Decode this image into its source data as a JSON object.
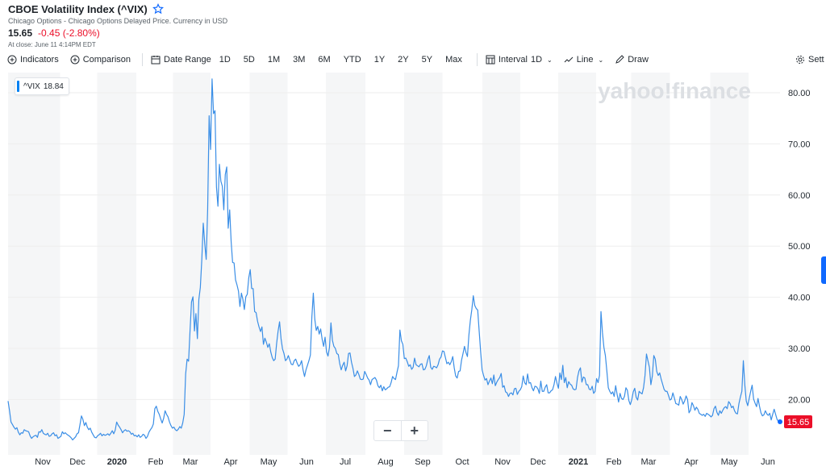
{
  "header": {
    "title": "CBOE Volatility Index (^VIX)",
    "subtitle": "Chicago Options - Chicago Options Delayed Price. Currency in USD",
    "price": "15.65",
    "change": "-0.45 (-2.80%)",
    "close_time": "At close: June 11 4:14PM EDT"
  },
  "toolbar": {
    "indicators": "Indicators",
    "comparison": "Comparison",
    "date_range": "Date Range",
    "ranges": [
      "1D",
      "5D",
      "1M",
      "3M",
      "6M",
      "YTD",
      "1Y",
      "2Y",
      "5Y",
      "Max"
    ],
    "interval_label": "Interval",
    "interval_value": "1D",
    "chart_type": "Line",
    "draw": "Draw",
    "settings": "Sett"
  },
  "tooltip": {
    "symbol": "^VIX",
    "value": "18.84"
  },
  "watermark": "yahoo!finance",
  "colors": {
    "line": "#3a8ee6",
    "negative": "#eb0f29",
    "band": "#f5f6f7",
    "grid": "#eeeeee",
    "price_tag": "#eb0f29"
  },
  "chart_data": {
    "type": "line",
    "series": [
      {
        "values": [
          19.7,
          17.8,
          15.6,
          15.1,
          14.6,
          14.2,
          14.5,
          13.6,
          13.1,
          13.5,
          13.4,
          14.1,
          13.9,
          13.8,
          13.7,
          12.9,
          12.4,
          12.7,
          12.9,
          13.0,
          12.6,
          13.7,
          13.6,
          14.1,
          13.4,
          13.2,
          13.1,
          13.4,
          12.8,
          12.9,
          13.3,
          13.5,
          12.9,
          13.1,
          12.4,
          12.6,
          12.8,
          13.7,
          13.3,
          13.5,
          13.2,
          13.0,
          12.8,
          12.5,
          12.1,
          12.4,
          12.7,
          13.3,
          13.5,
          15.1,
          16.8,
          16.1,
          14.9,
          15.5,
          14.6,
          14.1,
          14.4,
          13.6,
          13.1,
          12.6,
          12.5,
          12.9,
          13.1,
          13.4,
          12.9,
          13.2,
          13.0,
          13.1,
          13.3,
          13.0,
          13.4,
          13.9,
          13.3,
          14.0,
          15.6,
          15.0,
          14.6,
          14.1,
          13.5,
          13.9,
          14.1,
          13.8,
          13.9,
          13.7,
          13.2,
          13.4,
          12.9,
          13.0,
          12.7,
          13.1,
          12.6,
          12.8,
          13.2,
          13.0,
          12.4,
          12.8,
          13.6,
          14.1,
          14.5,
          15.2,
          18.2,
          18.7,
          17.7,
          17.1,
          16.2,
          15.4,
          16.3,
          17.8,
          17.1,
          16.6,
          15.6,
          14.9,
          14.4,
          14.6,
          14.1,
          13.9,
          14.2,
          14.7,
          14.4,
          15.4,
          17.1,
          25.0,
          27.9,
          27.5,
          33.5,
          39.1,
          40.1,
          33.4,
          36.8,
          31.9,
          39.6,
          41.9,
          47.3,
          54.5,
          50.5,
          47.4,
          57.2,
          75.5,
          68.9,
          82.7,
          75.9,
          76.5,
          61.6,
          57.8,
          66.0,
          62.7,
          61.7,
          57.1,
          64.0,
          65.5,
          53.5,
          57.1,
          50.9,
          46.8,
          46.7,
          43.4,
          42.4,
          41.2,
          38.2,
          40.8,
          39.6,
          37.6,
          40.1,
          40.6,
          43.8,
          45.4,
          41.7,
          41.7,
          37.2,
          37.0,
          35.3,
          34.2,
          33.3,
          34.2,
          30.8,
          32.0,
          31.2,
          30.2,
          30.9,
          29.3,
          28.2,
          27.6,
          27.9,
          31.0,
          33.4,
          35.2,
          31.9,
          29.9,
          29.0,
          27.6,
          27.9,
          28.6,
          27.7,
          26.9,
          26.8,
          27.6,
          27.9,
          27.1,
          26.5,
          26.8,
          27.6,
          25.8,
          24.5,
          25.8,
          26.7,
          27.6,
          28.7,
          36.1,
          40.8,
          35.7,
          33.5,
          34.3,
          32.8,
          33.8,
          31.8,
          30.4,
          32.2,
          29.3,
          28.5,
          30.2,
          35.0,
          31.6,
          30.4,
          30.0,
          29.0,
          28.8,
          27.0,
          25.8,
          26.7,
          27.3,
          25.6,
          26.6,
          29.0,
          29.1,
          27.3,
          26.1,
          24.5,
          24.8,
          25.6,
          24.9,
          24.0,
          23.9,
          24.0,
          25.5,
          24.9,
          24.2,
          23.8,
          22.9,
          23.9,
          24.1,
          24.3,
          23.8,
          22.7,
          22.3,
          22.8,
          21.7,
          22.5,
          21.9,
          22.1,
          22.4,
          22.5,
          23.3,
          24.5,
          24.1,
          23.9,
          25.3,
          26.6,
          33.6,
          31.5,
          30.8,
          28.0,
          28.1,
          27.4,
          26.5,
          26.8,
          25.9,
          26.3,
          28.1,
          26.8,
          26.6,
          26.4,
          26.9,
          27.0,
          25.8,
          25.9,
          26.6,
          27.8,
          28.6,
          26.3,
          25.9,
          26.5,
          26.4,
          26.2,
          26.8,
          27.9,
          28.3,
          29.5,
          29.4,
          28.2,
          27.0,
          27.3,
          26.8,
          27.4,
          28.4,
          26.2,
          24.6,
          24.2,
          25.5,
          25.6,
          27.7,
          29.0,
          30.4,
          29.2,
          28.4,
          32.6,
          35.5,
          37.6,
          40.3,
          38.4,
          37.8,
          37.5,
          33.4,
          29.4,
          25.8,
          24.7,
          23.8,
          24.1,
          22.9,
          23.6,
          24.2,
          23.1,
          24.8,
          22.7,
          23.4,
          23.9,
          24.3,
          25.1,
          22.4,
          22.7,
          21.5,
          21.3,
          20.6,
          21.2,
          21.3,
          20.9,
          22.1,
          22.2,
          21.0,
          21.6,
          21.9,
          22.5,
          24.6,
          23.3,
          22.9,
          25.0,
          23.2,
          23.3,
          22.3,
          21.7,
          22.6,
          22.5,
          22.1,
          21.2,
          23.6,
          21.6,
          21.6,
          22.4,
          22.9,
          21.3,
          21.3,
          21.7,
          21.9,
          22.9,
          24.5,
          23.2,
          22.2,
          25.2,
          23.9,
          26.7,
          23.3,
          24.3,
          22.3,
          23.5,
          23.0,
          22.8,
          22.1,
          21.9,
          22.0,
          24.3,
          25.6,
          26.2,
          23.4,
          24.4,
          24.2,
          22.9,
          22.9,
          22.0,
          21.9,
          22.6,
          21.2,
          21.6,
          24.1,
          23.3,
          24.7,
          37.2,
          33.1,
          30.2,
          28.6,
          25.6,
          22.3,
          21.6,
          21.1,
          21.5,
          20.6,
          22.7,
          21.0,
          19.5,
          21.2,
          20.2,
          20.0,
          20.6,
          22.3,
          21.8,
          19.8,
          19.0,
          20.0,
          21.5,
          22.2,
          20.4,
          19.9,
          21.6,
          21.3,
          21.1,
          22.3,
          24.7,
          28.9,
          27.6,
          26.3,
          22.9,
          24.6,
          28.6,
          27.9,
          25.5,
          24.7,
          25.2,
          24.0,
          23.0,
          22.0,
          21.6,
          21.6,
          20.8,
          19.9,
          20.1,
          21.3,
          20.3,
          19.2,
          19.1,
          18.9,
          20.6,
          20.0,
          19.1,
          19.7,
          20.7,
          20.0,
          17.4,
          17.9,
          19.4,
          18.8,
          17.9,
          18.5,
          18.1,
          17.3,
          17.1,
          16.9,
          17.1,
          16.7,
          17.3,
          17.1,
          16.9,
          16.6,
          16.9,
          18.2,
          18.7,
          17.5,
          16.9,
          17.8,
          17.3,
          17.9,
          18.4,
          18.6,
          18.2,
          19.6,
          19.2,
          18.4,
          18.7,
          17.8,
          17.3,
          17.2,
          19.2,
          20.5,
          21.6,
          27.6,
          22.9,
          19.7,
          18.8,
          20.2,
          21.6,
          22.8,
          20.1,
          19.3,
          18.6,
          20.2,
          18.7,
          17.4,
          16.8,
          17.0,
          17.8,
          17.2,
          16.9,
          17.3,
          16.0,
          17.1,
          18.1,
          17.1,
          16.1,
          15.7,
          15.65
        ]
      }
    ],
    "x_labels": [
      "Nov",
      "Dec",
      "2020",
      "Feb",
      "Mar",
      "Apr",
      "May",
      "Jun",
      "Jul",
      "Aug",
      "Sep",
      "Oct",
      "Nov",
      "Dec",
      "2021",
      "Feb",
      "Mar",
      "Apr",
      "May",
      "Jun"
    ],
    "y_ticks": [
      "20.00",
      "30.00",
      "40.00",
      "50.00",
      "60.00",
      "70.00",
      "80.00"
    ],
    "ylim": [
      12,
      85
    ],
    "last_price_label": "15.65",
    "grid": true
  }
}
